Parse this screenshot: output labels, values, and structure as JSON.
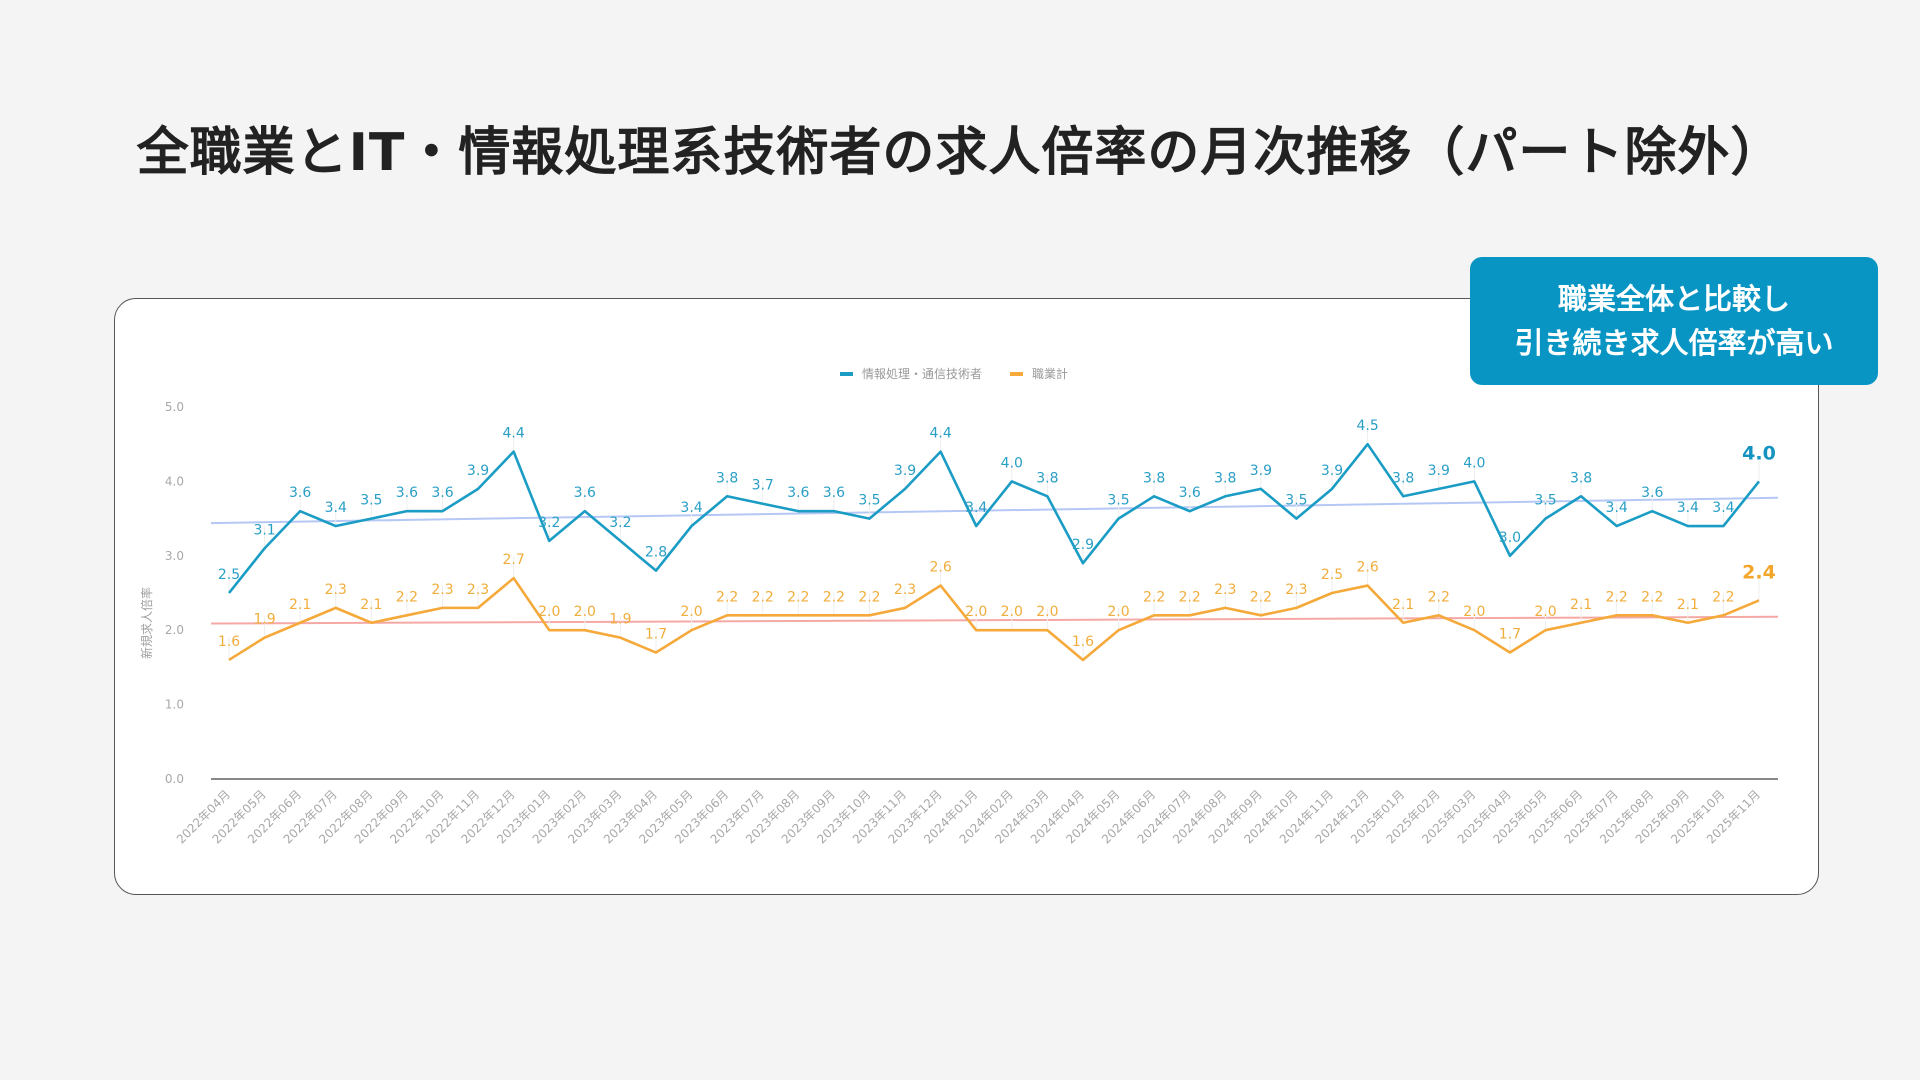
{
  "page": {
    "title": "全職業とIT・情報処理系技術者の求人倍率の月次推移（パート除外）",
    "callout": {
      "line1": "職業全体と比較し",
      "line2": "引き続き求人倍率が高い"
    }
  },
  "colors": {
    "background": "#f4f4f4",
    "callout": "#0895c3",
    "it_series": "#1a9cc4",
    "all_series": "#f5a93a",
    "it_trend": "#b5c8f5",
    "all_trend": "#f5a9a5"
  },
  "chart_data": {
    "type": "line",
    "title": "",
    "xlabel": "",
    "ylabel": "新規求人倍率",
    "ylim": [
      0,
      5
    ],
    "yticks": [
      "0.0",
      "1.0",
      "2.0",
      "3.0",
      "4.0",
      "5.0"
    ],
    "legend_position": "top",
    "grid": false,
    "categories": [
      "2022年04月",
      "2022年05月",
      "2022年06月",
      "2022年07月",
      "2022年08月",
      "2022年09月",
      "2022年10月",
      "2022年11月",
      "2022年12月",
      "2023年01月",
      "2023年02月",
      "2023年03月",
      "2023年04月",
      "2023年05月",
      "2023年06月",
      "2023年07月",
      "2023年08月",
      "2023年09月",
      "2023年10月",
      "2023年11月",
      "2023年12月",
      "2024年01月",
      "2024年02月",
      "2024年03月",
      "2024年04月",
      "2024年05月",
      "2024年06月",
      "2024年07月",
      "2024年08月",
      "2024年09月",
      "2024年10月",
      "2024年11月",
      "2024年12月",
      "2025年01月",
      "2025年02月",
      "2025年03月",
      "2025年04月",
      "2025年05月",
      "2025年06月",
      "2025年07月",
      "2025年08月",
      "2025年09月",
      "2025年10月",
      "2025年11月"
    ],
    "series": [
      {
        "name": "情報処理・通信技術者",
        "color": "#1a9cc4",
        "values": [
          2.5,
          3.1,
          3.6,
          3.4,
          3.5,
          3.6,
          3.6,
          3.9,
          4.4,
          3.2,
          3.6,
          3.2,
          2.8,
          3.4,
          3.8,
          3.7,
          3.6,
          3.6,
          3.5,
          3.9,
          4.4,
          3.4,
          4.0,
          3.8,
          2.9,
          3.5,
          3.8,
          3.6,
          3.8,
          3.9,
          3.5,
          3.9,
          4.5,
          3.8,
          3.9,
          4.0,
          3.0,
          3.5,
          3.8,
          3.4,
          3.6,
          3.4,
          3.4,
          4.0
        ],
        "trend": {
          "start": 3.44,
          "end": 3.78,
          "color": "#b5c8f5"
        }
      },
      {
        "name": "職業計",
        "color": "#f5a93a",
        "values": [
          1.6,
          1.9,
          2.1,
          2.3,
          2.1,
          2.2,
          2.3,
          2.3,
          2.7,
          2.0,
          2.0,
          1.9,
          1.7,
          2.0,
          2.2,
          2.2,
          2.2,
          2.2,
          2.2,
          2.3,
          2.6,
          2.0,
          2.0,
          2.0,
          1.6,
          2.0,
          2.2,
          2.2,
          2.3,
          2.2,
          2.3,
          2.5,
          2.6,
          2.1,
          2.2,
          2.0,
          1.7,
          2.0,
          2.1,
          2.2,
          2.2,
          2.1,
          2.2,
          2.4
        ],
        "trend": {
          "start": 2.09,
          "end": 2.18,
          "color": "#f5a9a5"
        }
      }
    ],
    "annotations": [
      "最新値を強調表示: 4.0 / 2.4"
    ]
  }
}
